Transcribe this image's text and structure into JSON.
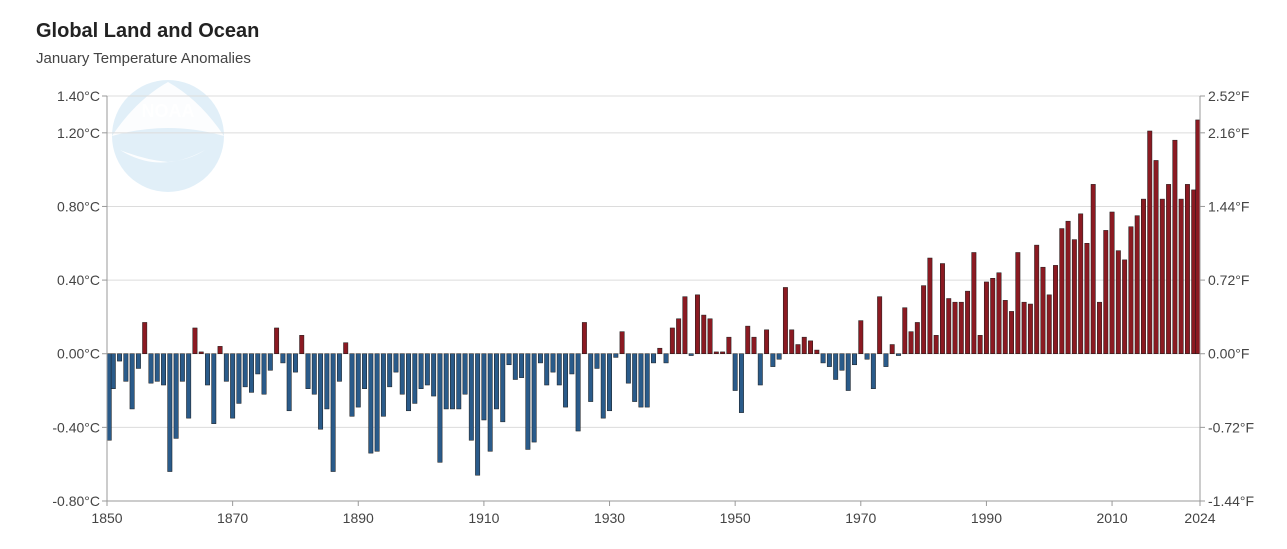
{
  "title": "Global Land and Ocean",
  "subtitle": "January Temperature Anomalies",
  "logo_text": "NOAA",
  "colors": {
    "positive": "#8b1a22",
    "negative": "#2a5b8a",
    "grid": "#dcdcdc",
    "axis": "#999999"
  },
  "chart_data": {
    "type": "bar",
    "title": "Global Land and Ocean",
    "subtitle": "January Temperature Anomalies",
    "x_ticks": [
      "1850",
      "1870",
      "1890",
      "1910",
      "1930",
      "1950",
      "1970",
      "1990",
      "2010",
      "2024"
    ],
    "y_ticks_left": [
      "1.40°C",
      "1.20°C",
      "0.80°C",
      "0.40°C",
      "0.00°C",
      "-0.40°C",
      "-0.80°C"
    ],
    "y_ticks_right": [
      "2.52°F",
      "2.16°F",
      "1.44°F",
      "0.72°F",
      "0.00°F",
      "-0.72°F",
      "-1.44°F"
    ],
    "y_tick_values": [
      1.4,
      1.2,
      0.8,
      0.4,
      0.0,
      -0.4,
      -0.8
    ],
    "ylim": [
      -0.8,
      1.4
    ],
    "xlim": [
      1850,
      2024
    ],
    "grid": true,
    "x": [
      1850,
      1851,
      1852,
      1853,
      1854,
      1855,
      1856,
      1857,
      1858,
      1859,
      1860,
      1861,
      1862,
      1863,
      1864,
      1865,
      1866,
      1867,
      1868,
      1869,
      1870,
      1871,
      1872,
      1873,
      1874,
      1875,
      1876,
      1877,
      1878,
      1879,
      1880,
      1881,
      1882,
      1883,
      1884,
      1885,
      1886,
      1887,
      1888,
      1889,
      1890,
      1891,
      1892,
      1893,
      1894,
      1895,
      1896,
      1897,
      1898,
      1899,
      1900,
      1901,
      1902,
      1903,
      1904,
      1905,
      1906,
      1907,
      1908,
      1909,
      1910,
      1911,
      1912,
      1913,
      1914,
      1915,
      1916,
      1917,
      1918,
      1919,
      1920,
      1921,
      1922,
      1923,
      1924,
      1925,
      1926,
      1927,
      1928,
      1929,
      1930,
      1931,
      1932,
      1933,
      1934,
      1935,
      1936,
      1937,
      1938,
      1939,
      1940,
      1941,
      1942,
      1943,
      1944,
      1945,
      1946,
      1947,
      1948,
      1949,
      1950,
      1951,
      1952,
      1953,
      1954,
      1955,
      1956,
      1957,
      1958,
      1959,
      1960,
      1961,
      1962,
      1963,
      1964,
      1965,
      1966,
      1967,
      1968,
      1969,
      1970,
      1971,
      1972,
      1973,
      1974,
      1975,
      1976,
      1977,
      1978,
      1979,
      1980,
      1981,
      1982,
      1983,
      1984,
      1985,
      1986,
      1987,
      1988,
      1989,
      1990,
      1991,
      1992,
      1993,
      1994,
      1995,
      1996,
      1997,
      1998,
      1999,
      2000,
      2001,
      2002,
      2003,
      2004,
      2005,
      2006,
      2007,
      2008,
      2009,
      2010,
      2011,
      2012,
      2013,
      2014,
      2015,
      2016,
      2017,
      2018,
      2019,
      2020,
      2021,
      2022,
      2023,
      2024
    ],
    "values": [
      -0.47,
      -0.19,
      -0.04,
      -0.15,
      -0.3,
      -0.08,
      0.17,
      -0.16,
      -0.15,
      -0.17,
      -0.64,
      -0.46,
      -0.15,
      -0.35,
      0.14,
      0.01,
      -0.17,
      -0.38,
      0.04,
      -0.15,
      -0.35,
      -0.27,
      -0.18,
      -0.21,
      -0.11,
      -0.22,
      -0.09,
      0.14,
      -0.05,
      -0.31,
      -0.1,
      0.1,
      -0.19,
      -0.22,
      -0.41,
      -0.3,
      -0.64,
      -0.15,
      0.06,
      -0.34,
      -0.29,
      -0.19,
      -0.54,
      -0.53,
      -0.34,
      -0.18,
      -0.1,
      -0.22,
      -0.31,
      -0.27,
      -0.19,
      -0.17,
      -0.23,
      -0.59,
      -0.3,
      -0.3,
      -0.3,
      -0.22,
      -0.47,
      -0.66,
      -0.36,
      -0.53,
      -0.3,
      -0.37,
      -0.06,
      -0.14,
      -0.13,
      -0.52,
      -0.48,
      -0.05,
      -0.17,
      -0.1,
      -0.17,
      -0.29,
      -0.11,
      -0.42,
      0.17,
      -0.26,
      -0.08,
      -0.35,
      -0.31,
      -0.02,
      0.12,
      -0.16,
      -0.26,
      -0.29,
      -0.29,
      -0.05,
      0.03,
      -0.05,
      0.14,
      0.19,
      0.31,
      -0.01,
      0.32,
      0.21,
      0.19,
      0.01,
      0.01,
      0.09,
      -0.2,
      -0.32,
      0.15,
      0.09,
      -0.17,
      0.13,
      -0.07,
      -0.03,
      0.36,
      0.13,
      0.05,
      0.09,
      0.07,
      0.02,
      -0.05,
      -0.07,
      -0.14,
      -0.09,
      -0.2,
      -0.06,
      0.18,
      -0.03,
      -0.19,
      0.31,
      -0.07,
      0.05,
      -0.01,
      0.25,
      0.12,
      0.17,
      0.37,
      0.52,
      0.1,
      0.49,
      0.3,
      0.28,
      0.28,
      0.34,
      0.55,
      0.1,
      0.39,
      0.41,
      0.44,
      0.29,
      0.23,
      0.55,
      0.28,
      0.27,
      0.59,
      0.47,
      0.32,
      0.48,
      0.68,
      0.72,
      0.62,
      0.76,
      0.6,
      0.92,
      0.28,
      0.67,
      0.77,
      0.56,
      0.51,
      0.69,
      0.75,
      0.84,
      1.21,
      1.05,
      0.84,
      0.92,
      1.16,
      0.84,
      0.92,
      0.89,
      1.27
    ]
  }
}
